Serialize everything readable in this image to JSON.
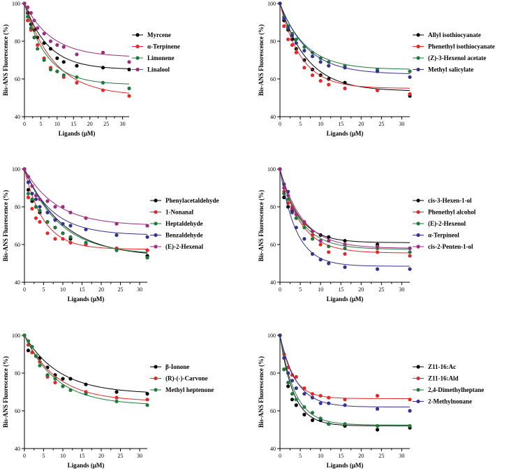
{
  "chart_data": [
    {
      "type": "scatter",
      "title": "",
      "xlabel": "Ligands (μM)",
      "ylabel": "Bis-ANS Fluorescence (%)",
      "xlim": [
        0,
        32
      ],
      "ylim": [
        40,
        100
      ],
      "xticks": [
        "0",
        "5",
        "10",
        "15",
        "20",
        "25",
        "30"
      ],
      "yticks": [
        "40",
        "60",
        "80",
        "100"
      ],
      "legend_position": "top-right",
      "x": [
        0,
        1,
        2,
        3,
        4,
        6,
        8,
        10,
        12,
        16,
        24,
        32
      ],
      "series": [
        {
          "name": "Myrcene",
          "color": "#000000",
          "values": [
            100,
            95,
            89,
            86,
            82,
            79,
            76,
            71,
            69,
            67,
            66,
            65
          ],
          "fit": {
            "plateau": 65,
            "k": 0.14
          }
        },
        {
          "name": "α-Terpinene",
          "color": "#e8262a",
          "values": [
            100,
            91,
            86,
            82,
            78,
            71,
            66,
            64,
            61,
            58,
            54,
            51
          ],
          "fit": {
            "plateau": 51,
            "k": 0.11
          }
        },
        {
          "name": "Limonene",
          "color": "#1f7a3a",
          "values": [
            100,
            93,
            87,
            82,
            76,
            70,
            65,
            64,
            62,
            61,
            58,
            55
          ],
          "fit": {
            "plateau": 57,
            "k": 0.15
          }
        },
        {
          "name": "Linalool",
          "color": "#9c2c7e",
          "values": [
            100,
            98,
            95,
            91,
            87,
            84,
            80,
            78,
            77,
            73,
            74,
            69
          ],
          "fit": {
            "plateau": 71.5,
            "k": 0.12
          }
        }
      ]
    },
    {
      "type": "scatter",
      "title": "",
      "xlabel": "Ligands (μM)",
      "ylabel": "Bis-ANS Fluorescence (%)",
      "xlim": [
        0,
        32
      ],
      "ylim": [
        40,
        100
      ],
      "xticks": [
        "0",
        "5",
        "10",
        "15",
        "20",
        "25",
        "30"
      ],
      "yticks": [
        "40",
        "60",
        "80",
        "100"
      ],
      "legend_position": "top-right",
      "x": [
        0,
        1,
        2,
        3,
        4,
        6,
        8,
        10,
        12,
        16,
        24,
        32
      ],
      "series": [
        {
          "name": "Allyl isothiocyanate",
          "color": "#000000",
          "values": [
            100,
            91,
            86,
            81,
            76,
            70,
            65,
            62,
            60,
            58,
            54,
            51
          ],
          "fit": {
            "plateau": 53.5,
            "k": 0.15
          }
        },
        {
          "name": "Phenethyl isothiocyanate",
          "color": "#e8262a",
          "values": [
            100,
            88,
            81,
            78,
            74,
            66,
            62,
            59,
            57,
            55,
            54,
            52
          ],
          "fit": {
            "plateau": 55,
            "k": 0.19
          }
        },
        {
          "name": "(Z)-3-Hexenol acetate",
          "color": "#1f7a3a",
          "values": [
            100,
            93,
            88,
            84,
            81,
            77,
            74,
            71,
            69,
            67,
            65,
            64
          ],
          "fit": {
            "plateau": 65,
            "k": 0.16
          }
        },
        {
          "name": "Methyl salicylate",
          "color": "#33328f",
          "values": [
            100,
            92,
            87,
            83,
            79,
            75,
            72,
            69,
            67,
            66,
            64,
            61
          ],
          "fit": {
            "plateau": 62.5,
            "k": 0.15
          }
        }
      ]
    },
    {
      "type": "scatter",
      "title": "",
      "xlabel": "Ligands (μM)",
      "ylabel": "Bis-ANS Fluorescence (%)",
      "xlim": [
        0,
        32
      ],
      "ylim": [
        40,
        100
      ],
      "xticks": [
        "0",
        "5",
        "10",
        "15",
        "20",
        "25",
        "30"
      ],
      "yticks": [
        "40",
        "60",
        "80",
        "100"
      ],
      "legend_position": "top-right",
      "x": [
        0,
        1,
        2,
        3,
        4,
        6,
        8,
        10,
        12,
        16,
        24,
        32
      ],
      "series": [
        {
          "name": "Phenylacetaldehyde",
          "color": "#000000",
          "values": [
            100,
            89,
            83,
            80,
            77,
            72,
            69,
            66,
            63,
            60,
            57,
            54
          ],
          "fit": {
            "plateau": 53.5,
            "k": 0.1
          }
        },
        {
          "name": "1-Nonanal",
          "color": "#e8262a",
          "values": [
            100,
            85,
            79,
            74,
            72,
            66,
            63,
            63,
            61,
            60,
            58,
            57
          ],
          "fit": {
            "plateau": 57.5,
            "k": 0.2
          }
        },
        {
          "name": "Heptaldehyde",
          "color": "#1f7a3a",
          "values": [
            100,
            87,
            84,
            80,
            78,
            72,
            69,
            66,
            64,
            61,
            57,
            53
          ],
          "fit": {
            "plateau": 54.5,
            "k": 0.11
          }
        },
        {
          "name": "Benzaldehyde",
          "color": "#33328f",
          "values": [
            100,
            93,
            87,
            84,
            80,
            77,
            73,
            71,
            70,
            68,
            65,
            64
          ],
          "fit": {
            "plateau": 65,
            "k": 0.14
          }
        },
        {
          "name": "(E)-2-Hexenal",
          "color": "#9c2c7e",
          "values": [
            100,
            96,
            91,
            86,
            84,
            83,
            80,
            80,
            77,
            74,
            71,
            70
          ],
          "fit": {
            "plateau": 70,
            "k": 0.12
          }
        }
      ]
    },
    {
      "type": "scatter",
      "title": "",
      "xlabel": "Ligands (μM)",
      "ylabel": "Bis-ANS Fluorescence (%)",
      "xlim": [
        0,
        32
      ],
      "ylim": [
        40,
        100
      ],
      "xticks": [
        "0",
        "5",
        "10",
        "15",
        "20",
        "25",
        "30"
      ],
      "yticks": [
        "40",
        "60",
        "80",
        "100"
      ],
      "legend_position": "top-right",
      "x": [
        0,
        1,
        2,
        3,
        4,
        6,
        8,
        10,
        12,
        16,
        24,
        32
      ],
      "series": [
        {
          "name": "cis-3-Hexen-1-ol",
          "color": "#000000",
          "values": [
            100,
            85,
            80,
            78,
            74,
            71,
            67,
            65,
            64,
            62,
            60,
            58
          ],
          "fit": {
            "plateau": 61,
            "k": 0.22
          }
        },
        {
          "name": "Phenethyl alcohol",
          "color": "#e8262a",
          "values": [
            100,
            88,
            82,
            80,
            76,
            71,
            65,
            60,
            56,
            55,
            56,
            54
          ],
          "fit": {
            "plateau": 55.5,
            "k": 0.2
          }
        },
        {
          "name": "(E)-2-Hexenol",
          "color": "#1f7a3a",
          "values": [
            100,
            87,
            84,
            79,
            74,
            69,
            63,
            62,
            59,
            58,
            58,
            56
          ],
          "fit": {
            "plateau": 57.5,
            "k": 0.2
          }
        },
        {
          "name": "α-Terpineol",
          "color": "#33328f",
          "values": [
            100,
            92,
            88,
            77,
            69,
            63,
            55,
            52,
            50,
            48,
            47,
            47
          ],
          "fit": {
            "plateau": 48.5,
            "k": 0.25
          }
        },
        {
          "name": "cis-2-Penten-1-ol",
          "color": "#9c2c7e",
          "values": [
            100,
            90,
            86,
            79,
            76,
            72,
            67,
            62,
            62,
            60,
            59,
            58
          ],
          "fit": {
            "plateau": 58,
            "k": 0.18
          }
        }
      ]
    },
    {
      "type": "scatter",
      "title": "",
      "xlabel": "Ligands (μM)",
      "ylabel": "Bis-ANS Fluorescence (%)",
      "xlim": [
        0,
        32
      ],
      "ylim": [
        40,
        100
      ],
      "xticks": [
        "0",
        "5",
        "10",
        "15",
        "20",
        "25",
        "30"
      ],
      "yticks": [
        "40",
        "60",
        "80",
        "100"
      ],
      "legend_position": "top-right",
      "x": [
        0,
        1,
        2,
        3,
        4,
        6,
        8,
        10,
        12,
        16,
        24,
        32
      ],
      "series": [
        {
          "name": "β-Ionone",
          "color": "#000000",
          "values": [
            100,
            92,
            91,
            89,
            88,
            83,
            79,
            77,
            77,
            74,
            70,
            69
          ],
          "fit": {
            "plateau": 69,
            "k": 0.11
          }
        },
        {
          "name": "(R)-(-)-Carvone",
          "color": "#e8262a",
          "values": [
            100,
            95,
            91,
            89,
            86,
            78,
            75,
            73,
            71,
            70,
            67,
            66
          ],
          "fit": {
            "plateau": 65,
            "k": 0.12
          }
        },
        {
          "name": "Methyl heptenone",
          "color": "#1f7a3a",
          "values": [
            100,
            97,
            94,
            89,
            84,
            79,
            77,
            73,
            71,
            69,
            65,
            63
          ],
          "fit": {
            "plateau": 63,
            "k": 0.12
          }
        }
      ]
    },
    {
      "type": "scatter",
      "title": "",
      "xlabel": "Ligands (μM)",
      "ylabel": "Bis-ANS Fluorescence (%)",
      "xlim": [
        0,
        32
      ],
      "ylim": [
        40,
        100
      ],
      "xticks": [
        "0",
        "5",
        "10",
        "15",
        "20",
        "25",
        "30"
      ],
      "yticks": [
        "40",
        "60",
        "80",
        "100"
      ],
      "legend_position": "top-right",
      "x": [
        0,
        1,
        2,
        3,
        4,
        6,
        8,
        10,
        12,
        16,
        24,
        32
      ],
      "series": [
        {
          "name": "Z11-16:Ac",
          "color": "#000000",
          "values": [
            100,
            82,
            73,
            66,
            63,
            58,
            55,
            55,
            53,
            52,
            50,
            51
          ],
          "fit": {
            "plateau": 52,
            "k": 0.3
          }
        },
        {
          "name": "Z11-16:Ald",
          "color": "#e8262a",
          "values": [
            100,
            90,
            83,
            79,
            78,
            72,
            69,
            68,
            67,
            66,
            68,
            66
          ],
          "fit": {
            "plateau": 66.5,
            "k": 0.32
          }
        },
        {
          "name": "2,4-Dimethylheptane",
          "color": "#1f7a3a",
          "values": [
            100,
            82,
            75,
            69,
            66,
            62,
            59,
            56,
            53,
            53,
            52,
            52
          ],
          "fit": {
            "plateau": 52.5,
            "k": 0.27
          }
        },
        {
          "name": "2-Methylnonane",
          "color": "#33328f",
          "values": [
            100,
            88,
            80,
            76,
            72,
            69,
            67,
            64,
            64,
            63,
            61,
            60
          ],
          "fit": {
            "plateau": 62,
            "k": 0.25
          }
        }
      ]
    }
  ]
}
